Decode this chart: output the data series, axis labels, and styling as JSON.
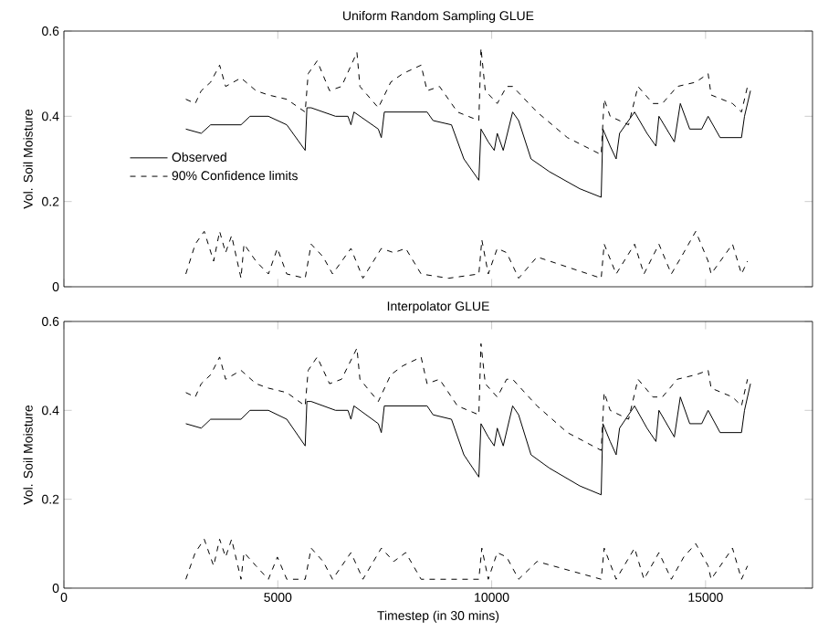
{
  "chart_data": [
    {
      "type": "line",
      "title": "Uniform Random Sampling GLUE",
      "ylabel": "Vol. Soil Moisture",
      "xlim": [
        0,
        17500
      ],
      "ylim": [
        0,
        0.6
      ],
      "xticks": [
        0,
        5000,
        10000,
        15000
      ],
      "yticks": [
        0,
        0.2,
        0.4,
        0.6
      ],
      "tick_labels": "y",
      "legend": "left",
      "series": [
        {
          "name": "Observed",
          "color": "#000000",
          "line_style": "solid",
          "x": [
            2850,
            3210,
            3430,
            4140,
            4350,
            4780,
            5210,
            5640,
            5680,
            5780,
            6350,
            6640,
            6710,
            6780,
            7350,
            7420,
            7490,
            8490,
            8630,
            9060,
            9350,
            9700,
            9750,
            9920,
            10060,
            10130,
            10270,
            10490,
            10630,
            10920,
            11350,
            12060,
            12560,
            12600,
            12770,
            12910,
            12990,
            13340,
            13630,
            13840,
            13910,
            14270,
            14410,
            14630,
            14910,
            15060,
            15340,
            15840,
            15910,
            16050
          ],
          "values": [
            0.37,
            0.36,
            0.38,
            0.38,
            0.4,
            0.4,
            0.38,
            0.32,
            0.42,
            0.42,
            0.4,
            0.4,
            0.38,
            0.41,
            0.37,
            0.35,
            0.41,
            0.41,
            0.39,
            0.38,
            0.3,
            0.25,
            0.37,
            0.34,
            0.32,
            0.36,
            0.32,
            0.41,
            0.39,
            0.3,
            0.27,
            0.23,
            0.21,
            0.37,
            0.33,
            0.3,
            0.36,
            0.41,
            0.36,
            0.33,
            0.4,
            0.34,
            0.43,
            0.37,
            0.37,
            0.4,
            0.35,
            0.35,
            0.4,
            0.46
          ]
        },
        {
          "name": "90% Confidence limits",
          "color": "#000000",
          "line_style": "dashed",
          "x": [
            2850,
            3070,
            3210,
            3430,
            3640,
            3780,
            4140,
            4490,
            4780,
            5210,
            5640,
            5710,
            5920,
            6210,
            6490,
            6850,
            6920,
            7350,
            7640,
            7920,
            8350,
            8490,
            8780,
            9200,
            9700,
            9750,
            9850,
            10130,
            10350,
            10490,
            11060,
            11770,
            12560,
            12630,
            12770,
            13200,
            13420,
            13770,
            13990,
            14340,
            14770,
            15060,
            15130,
            15630,
            15840,
            15980
          ],
          "values": [
            0.44,
            0.43,
            0.46,
            0.48,
            0.52,
            0.47,
            0.49,
            0.46,
            0.45,
            0.44,
            0.41,
            0.5,
            0.53,
            0.46,
            0.47,
            0.55,
            0.47,
            0.42,
            0.48,
            0.5,
            0.52,
            0.46,
            0.47,
            0.41,
            0.39,
            0.56,
            0.46,
            0.43,
            0.47,
            0.47,
            0.41,
            0.35,
            0.31,
            0.44,
            0.4,
            0.38,
            0.47,
            0.43,
            0.43,
            0.47,
            0.48,
            0.5,
            0.45,
            0.43,
            0.41,
            0.47
          ]
        },
        {
          "color": "#000000",
          "line_style": "dashed",
          "x": [
            2850,
            3070,
            3280,
            3500,
            3640,
            3780,
            3920,
            4140,
            4210,
            4490,
            4780,
            4990,
            5210,
            5640,
            5780,
            6060,
            6280,
            6710,
            6990,
            7420,
            7710,
            7990,
            8350,
            8990,
            9700,
            9770,
            9920,
            10130,
            10350,
            10630,
            11060,
            12560,
            12630,
            12910,
            13340,
            13560,
            13910,
            14200,
            14490,
            14770,
            15060,
            15130,
            15630,
            15840,
            15980
          ],
          "values": [
            0.03,
            0.1,
            0.13,
            0.06,
            0.13,
            0.08,
            0.12,
            0.02,
            0.1,
            0.06,
            0.03,
            0.09,
            0.03,
            0.02,
            0.1,
            0.07,
            0.03,
            0.09,
            0.02,
            0.09,
            0.08,
            0.09,
            0.03,
            0.02,
            0.03,
            0.11,
            0.03,
            0.09,
            0.08,
            0.02,
            0.07,
            0.02,
            0.1,
            0.03,
            0.1,
            0.03,
            0.1,
            0.03,
            0.08,
            0.13,
            0.06,
            0.03,
            0.1,
            0.03,
            0.06
          ]
        }
      ]
    },
    {
      "type": "line",
      "title": "Interpolator GLUE",
      "xlabel": "Timestep (in 30 mins)",
      "ylabel": "Vol. Soil Moisture",
      "xlim": [
        0,
        17500
      ],
      "ylim": [
        0,
        0.6
      ],
      "xticks": [
        0,
        5000,
        10000,
        15000
      ],
      "yticks": [
        0,
        0.2,
        0.4,
        0.6
      ],
      "series": [
        {
          "color": "#000000",
          "line_style": "solid",
          "x": [
            2850,
            3210,
            3430,
            4140,
            4350,
            4780,
            5210,
            5640,
            5680,
            5780,
            6350,
            6640,
            6710,
            6780,
            7350,
            7420,
            7490,
            8490,
            8630,
            9060,
            9350,
            9700,
            9750,
            9920,
            10060,
            10130,
            10270,
            10490,
            10630,
            10920,
            11350,
            12060,
            12560,
            12600,
            12770,
            12910,
            12990,
            13340,
            13630,
            13840,
            13910,
            14270,
            14410,
            14630,
            14910,
            15060,
            15340,
            15840,
            15910,
            16050
          ],
          "values": [
            0.37,
            0.36,
            0.38,
            0.38,
            0.4,
            0.4,
            0.38,
            0.32,
            0.42,
            0.42,
            0.4,
            0.4,
            0.38,
            0.41,
            0.37,
            0.35,
            0.41,
            0.41,
            0.39,
            0.38,
            0.3,
            0.25,
            0.37,
            0.34,
            0.32,
            0.36,
            0.32,
            0.41,
            0.39,
            0.3,
            0.27,
            0.23,
            0.21,
            0.37,
            0.33,
            0.3,
            0.36,
            0.41,
            0.36,
            0.33,
            0.4,
            0.34,
            0.43,
            0.37,
            0.37,
            0.4,
            0.35,
            0.35,
            0.4,
            0.46
          ]
        },
        {
          "color": "#000000",
          "line_style": "dashed",
          "x": [
            2850,
            3070,
            3210,
            3430,
            3640,
            3780,
            4140,
            4490,
            4780,
            5210,
            5640,
            5710,
            5920,
            6210,
            6490,
            6850,
            6920,
            7350,
            7640,
            7920,
            8350,
            8490,
            8780,
            9200,
            9700,
            9750,
            9850,
            10130,
            10350,
            10490,
            11060,
            11770,
            12560,
            12630,
            12770,
            13200,
            13420,
            13770,
            13990,
            14340,
            14770,
            15060,
            15130,
            15630,
            15840,
            15980
          ],
          "values": [
            0.44,
            0.43,
            0.46,
            0.48,
            0.52,
            0.47,
            0.49,
            0.46,
            0.45,
            0.44,
            0.41,
            0.49,
            0.52,
            0.46,
            0.47,
            0.54,
            0.47,
            0.42,
            0.48,
            0.5,
            0.52,
            0.46,
            0.47,
            0.41,
            0.39,
            0.55,
            0.46,
            0.43,
            0.47,
            0.47,
            0.41,
            0.35,
            0.31,
            0.44,
            0.4,
            0.38,
            0.47,
            0.43,
            0.43,
            0.47,
            0.48,
            0.49,
            0.45,
            0.43,
            0.41,
            0.47
          ]
        },
        {
          "color": "#000000",
          "line_style": "dashed",
          "x": [
            2850,
            3070,
            3280,
            3500,
            3640,
            3780,
            3920,
            4140,
            4210,
            4490,
            4780,
            4990,
            5210,
            5640,
            5780,
            6060,
            6280,
            6710,
            6990,
            7420,
            7710,
            7990,
            8350,
            8990,
            9700,
            9770,
            9920,
            10130,
            10350,
            10630,
            11060,
            12560,
            12630,
            12910,
            13340,
            13560,
            13910,
            14200,
            14490,
            14770,
            15060,
            15130,
            15630,
            15840,
            15980
          ],
          "values": [
            0.02,
            0.08,
            0.11,
            0.05,
            0.11,
            0.07,
            0.11,
            0.02,
            0.08,
            0.05,
            0.02,
            0.07,
            0.02,
            0.02,
            0.09,
            0.06,
            0.02,
            0.08,
            0.02,
            0.09,
            0.06,
            0.08,
            0.02,
            0.02,
            0.02,
            0.09,
            0.02,
            0.08,
            0.07,
            0.02,
            0.06,
            0.02,
            0.09,
            0.02,
            0.09,
            0.02,
            0.08,
            0.02,
            0.07,
            0.1,
            0.05,
            0.02,
            0.09,
            0.02,
            0.05
          ]
        }
      ]
    }
  ]
}
